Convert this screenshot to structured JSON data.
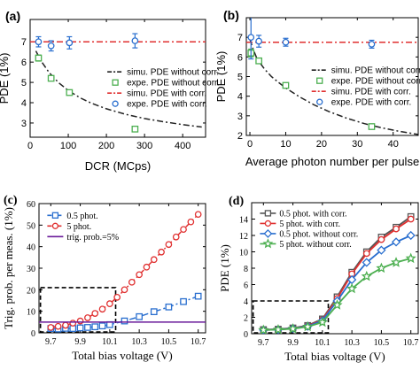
{
  "figure": {
    "background": "#ffffff"
  },
  "chart_data": [
    {
      "id": "a",
      "panel_label": "(a)",
      "type": "scatter",
      "xlabel": "DCR (MCps)",
      "ylabel": "PDE (1%)",
      "xlim": [
        0,
        460
      ],
      "ylim": [
        2.3,
        8.1
      ],
      "xticks": [
        0,
        100,
        200,
        300,
        400
      ],
      "yticks": [
        3,
        4,
        5,
        6,
        7
      ],
      "legend_position": "center-right",
      "series": [
        {
          "name": "simu. PDE without corr.",
          "kind": "line",
          "dash": "dashdot",
          "color": "#222222",
          "x": [
            15,
            30,
            50,
            75,
            100,
            130,
            160,
            200,
            250,
            300,
            350,
            400,
            450
          ],
          "y": [
            6.55,
            6.02,
            5.48,
            4.98,
            4.6,
            4.25,
            3.98,
            3.7,
            3.43,
            3.22,
            3.06,
            2.92,
            2.8
          ]
        },
        {
          "name": "expe. PDE without corr.",
          "kind": "marker",
          "marker": "square-open",
          "color": "#4caf50",
          "x": [
            22,
            55,
            103,
            275
          ],
          "y": [
            6.2,
            5.2,
            4.5,
            2.7
          ],
          "err": [
            0.15,
            0.12,
            0.1,
            0.1
          ]
        },
        {
          "name": "simu. PDE with corr.",
          "kind": "line",
          "dash": "dashdot",
          "color": "#e03030",
          "x": [
            0,
            460
          ],
          "y": [
            7.0,
            7.0
          ]
        },
        {
          "name": "expe. PDE with corr.",
          "kind": "marker",
          "marker": "circle-open",
          "color": "#2a6fcf",
          "x": [
            22,
            55,
            103,
            275
          ],
          "y": [
            7.0,
            6.8,
            6.95,
            7.05
          ],
          "err": [
            0.25,
            0.25,
            0.3,
            0.35
          ]
        }
      ]
    },
    {
      "id": "b",
      "panel_label": "(b)",
      "type": "scatter",
      "xlabel": "Average photon number per pulse",
      "ylabel": "PDE (1%)",
      "xlim": [
        -1,
        47
      ],
      "ylim": [
        2.0,
        8.0
      ],
      "xticks": [
        0,
        10,
        20,
        30,
        40
      ],
      "yticks": [
        2,
        3,
        4,
        5,
        6,
        7
      ],
      "legend_position": "center-right",
      "series": [
        {
          "name": "simu. PDE without corr.",
          "kind": "line",
          "dash": "dashdot",
          "color": "#222222",
          "x": [
            0,
            1,
            2,
            4,
            6,
            8,
            10,
            14,
            18,
            22,
            27,
            32,
            37,
            42,
            47
          ],
          "y": [
            6.9,
            6.35,
            5.9,
            5.4,
            5.0,
            4.7,
            4.42,
            3.95,
            3.55,
            3.22,
            2.88,
            2.6,
            2.38,
            2.2,
            2.05
          ]
        },
        {
          "name": "expe. PDE without corr.",
          "kind": "marker",
          "marker": "square-open",
          "color": "#4caf50",
          "x": [
            0.3,
            2.5,
            10,
            34
          ],
          "y": [
            6.2,
            5.8,
            4.55,
            2.45
          ],
          "err": [
            0.2,
            0.1,
            0.1,
            0.1
          ]
        },
        {
          "name": "simu. PDE with corr.",
          "kind": "line",
          "dash": "dashdot",
          "color": "#e03030",
          "x": [
            -1,
            47
          ],
          "y": [
            6.75,
            6.75
          ]
        },
        {
          "name": "expe. PDE with corr.",
          "kind": "marker",
          "marker": "circle-open",
          "color": "#2a6fcf",
          "x": [
            0.3,
            2.5,
            10,
            34
          ],
          "y": [
            7.0,
            6.8,
            6.75,
            6.65
          ],
          "err": [
            1.1,
            0.3,
            0.2,
            0.2
          ]
        }
      ]
    },
    {
      "id": "c",
      "panel_label": "(c)",
      "type": "line",
      "xlabel": "Total bias voltage (V)",
      "ylabel": "Trig. prob. per meas. (1%)",
      "xlim": [
        9.62,
        10.75
      ],
      "ylim": [
        0,
        60
      ],
      "xticks": [
        9.7,
        9.9,
        10.1,
        10.3,
        10.5,
        10.7
      ],
      "xtick_labels": [
        "9.7",
        "9.9",
        "10.1",
        "10.3",
        "10.5",
        "10.7"
      ],
      "yticks": [
        0,
        10,
        20,
        30,
        40,
        50,
        60
      ],
      "legend_position": "top-left",
      "highlight_box": {
        "x": [
          9.63,
          10.14
        ],
        "y": [
          0,
          21
        ]
      },
      "series": [
        {
          "name": "0.5 phot.",
          "marker": "square-open",
          "line": "dashdot",
          "color": "#2a6fcf",
          "x": [
            9.7,
            9.75,
            9.8,
            9.85,
            9.9,
            9.95,
            10.0,
            10.05,
            10.1,
            10.2,
            10.3,
            10.4,
            10.5,
            10.6,
            10.7
          ],
          "y": [
            2.0,
            1.8,
            2.1,
            2.0,
            2.3,
            2.5,
            2.8,
            3.2,
            3.8,
            5.5,
            7.5,
            9.8,
            12.0,
            14.5,
            17.0
          ]
        },
        {
          "name": "5 phot.",
          "marker": "circle-open",
          "line": "dashdot",
          "color": "#e03030",
          "x": [
            9.7,
            9.75,
            9.8,
            9.85,
            9.9,
            9.95,
            10.0,
            10.05,
            10.1,
            10.15,
            10.2,
            10.25,
            10.3,
            10.35,
            10.4,
            10.45,
            10.5,
            10.55,
            10.6,
            10.65,
            10.7
          ],
          "y": [
            2.5,
            3.0,
            3.5,
            4.5,
            5.5,
            7.0,
            9.0,
            11.0,
            13.5,
            16.5,
            20.0,
            23.5,
            27.0,
            30.5,
            34.0,
            37.5,
            41.0,
            44.5,
            48.0,
            51.5,
            55.0
          ]
        },
        {
          "name": "trig. prob.=5%",
          "marker": "none",
          "line": "solid",
          "color": "#6a1b9a",
          "x": [
            9.62,
            10.75
          ],
          "y": [
            5,
            5
          ]
        }
      ]
    },
    {
      "id": "d",
      "panel_label": "(d)",
      "type": "line",
      "xlabel": "Total bias voltage (V)",
      "ylabel": "PDE (1%)",
      "xlim": [
        9.62,
        10.75
      ],
      "ylim": [
        0,
        16
      ],
      "xticks": [
        9.7,
        9.9,
        10.1,
        10.3,
        10.5,
        10.7
      ],
      "xtick_labels": [
        "9.7",
        "9.9",
        "10.1",
        "10.3",
        "10.5",
        "10.7"
      ],
      "yticks": [
        0,
        2,
        4,
        6,
        8,
        10,
        12,
        14
      ],
      "legend_position": "top-left",
      "highlight_box": {
        "x": [
          9.63,
          10.14
        ],
        "y": [
          0,
          4.0
        ]
      },
      "series": [
        {
          "name": "0.5 phot. with corr.",
          "marker": "square-open",
          "color": "#555555",
          "x": [
            9.7,
            9.8,
            9.9,
            10.0,
            10.1,
            10.2,
            10.3,
            10.4,
            10.5,
            10.6,
            10.7
          ],
          "y": [
            0.5,
            0.55,
            0.7,
            1.0,
            1.8,
            4.5,
            7.5,
            10.0,
            11.8,
            13.0,
            14.3
          ]
        },
        {
          "name": "5 phot. with corr.",
          "marker": "circle-open",
          "color": "#e03030",
          "x": [
            9.7,
            9.8,
            9.9,
            10.0,
            10.1,
            10.2,
            10.3,
            10.4,
            10.5,
            10.6,
            10.7
          ],
          "y": [
            0.45,
            0.5,
            0.65,
            0.95,
            1.7,
            4.3,
            7.3,
            9.8,
            11.5,
            12.8,
            14.0
          ]
        },
        {
          "name": "0.5 phot. without corr.",
          "marker": "diamond-open",
          "color": "#2a6fcf",
          "x": [
            9.7,
            9.8,
            9.9,
            10.0,
            10.1,
            10.2,
            10.3,
            10.4,
            10.5,
            10.6,
            10.7
          ],
          "y": [
            0.45,
            0.5,
            0.65,
            0.9,
            1.6,
            4.0,
            6.6,
            8.7,
            10.2,
            11.2,
            12.0
          ]
        },
        {
          "name": "5 phot. without corr.",
          "marker": "star-open",
          "color": "#4caf50",
          "x": [
            9.7,
            9.8,
            9.9,
            10.0,
            10.1,
            10.2,
            10.3,
            10.4,
            10.5,
            10.6,
            10.7
          ],
          "y": [
            0.45,
            0.5,
            0.6,
            0.85,
            1.4,
            3.5,
            5.5,
            7.0,
            8.0,
            8.7,
            9.2
          ]
        }
      ]
    }
  ]
}
